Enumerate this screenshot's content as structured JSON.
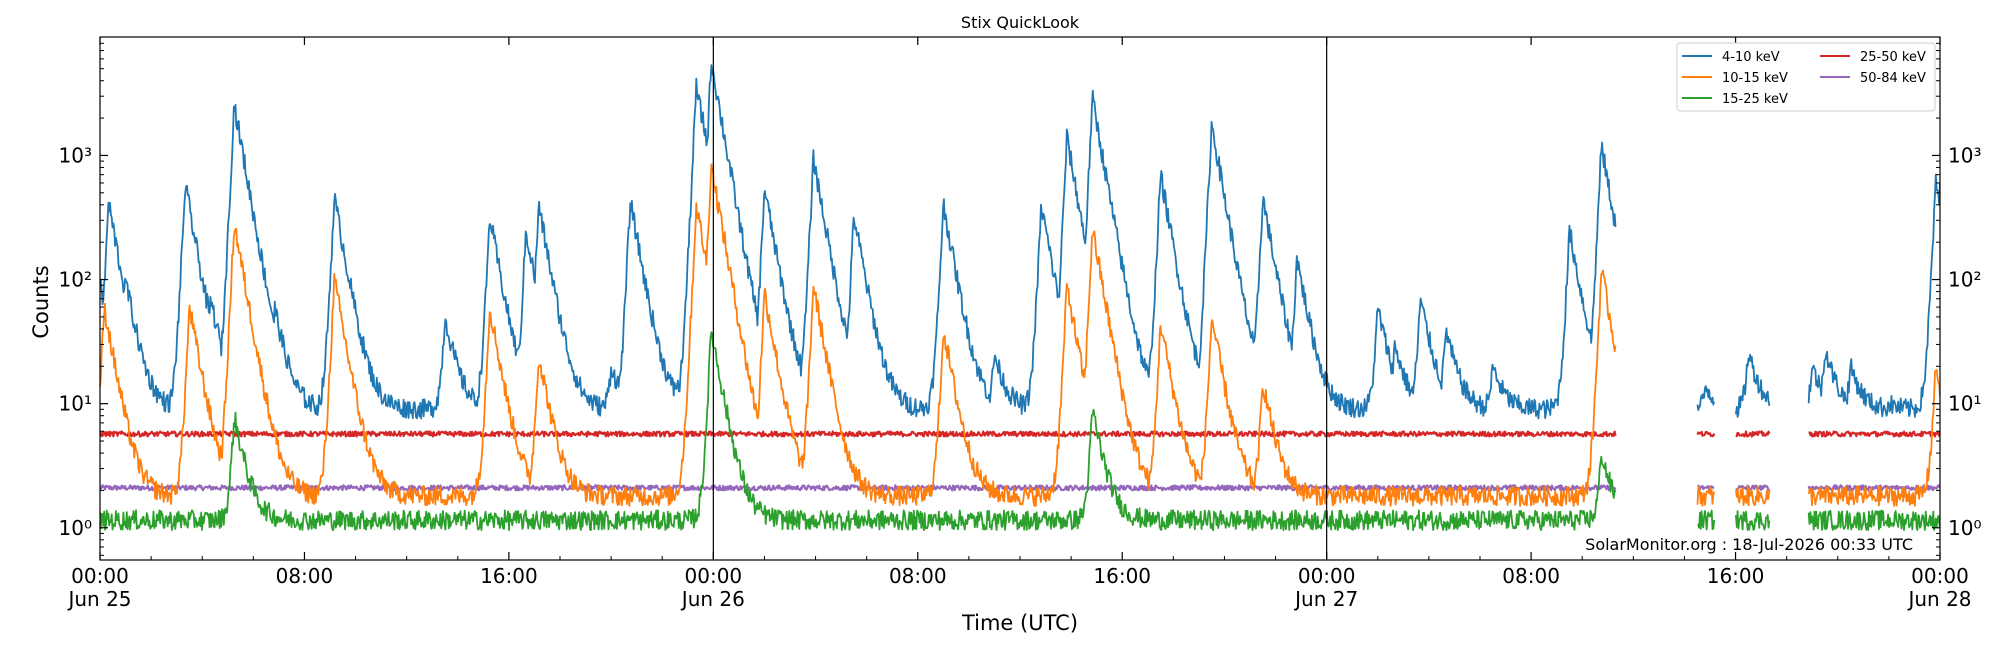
{
  "chart_data": {
    "type": "line",
    "title": "Stix QuickLook",
    "xlabel": "Time (UTC)",
    "ylabel": "Counts",
    "yscale": "log",
    "ylim": [
      0.55,
      9000
    ],
    "xlim": [
      "2026-06-25T00:00",
      "2026-06-28T00:00"
    ],
    "x_ticks": [
      {
        "time": "2026-06-25T00:00",
        "label": "00:00",
        "sublabel": "Jun 25"
      },
      {
        "time": "2026-06-25T08:00",
        "label": "08:00",
        "sublabel": ""
      },
      {
        "time": "2026-06-25T16:00",
        "label": "16:00",
        "sublabel": ""
      },
      {
        "time": "2026-06-26T00:00",
        "label": "00:00",
        "sublabel": "Jun 26"
      },
      {
        "time": "2026-06-26T08:00",
        "label": "08:00",
        "sublabel": ""
      },
      {
        "time": "2026-06-26T16:00",
        "label": "16:00",
        "sublabel": ""
      },
      {
        "time": "2026-06-27T00:00",
        "label": "00:00",
        "sublabel": "Jun 27"
      },
      {
        "time": "2026-06-27T08:00",
        "label": "08:00",
        "sublabel": ""
      },
      {
        "time": "2026-06-27T16:00",
        "label": "16:00",
        "sublabel": ""
      },
      {
        "time": "2026-06-28T00:00",
        "label": "00:00",
        "sublabel": "Jun 28"
      }
    ],
    "y_ticks": [
      {
        "value": 1,
        "label": "10⁰"
      },
      {
        "value": 10,
        "label": "10¹"
      },
      {
        "value": 100,
        "label": "10²"
      },
      {
        "value": 1000,
        "label": "10³"
      }
    ],
    "day_boundaries": [
      "2026-06-26T00:00",
      "2026-06-27T00:00"
    ],
    "data_gaps": [
      {
        "from": "2026-06-27T11:20",
        "to": "2026-06-27T14:30"
      },
      {
        "from": "2026-06-27T15:10",
        "to": "2026-06-27T16:00"
      },
      {
        "from": "2026-06-27T17:20",
        "to": "2026-06-27T18:50"
      }
    ],
    "legend": {
      "position": "top-right",
      "columns": 2
    },
    "grid": false,
    "series": [
      {
        "name": "4-10 keV",
        "color": "#1f77b4",
        "baseline": 9,
        "points": [
          [
            "2026-06-25T00:00",
            90
          ],
          [
            "2026-06-25T00:20",
            420
          ],
          [
            "2026-06-25T01:00",
            100
          ],
          [
            "2026-06-25T02:00",
            15
          ],
          [
            "2026-06-25T03:00",
            12
          ],
          [
            "2026-06-25T03:20",
            580
          ],
          [
            "2026-06-25T04:00",
            40
          ],
          [
            "2026-06-25T04:20",
            70
          ],
          [
            "2026-06-25T05:00",
            12
          ],
          [
            "2026-06-25T05:15",
            2600
          ],
          [
            "2026-06-25T06:00",
            15
          ],
          [
            "2026-06-25T06:50",
            60
          ],
          [
            "2026-06-25T09:10",
            460
          ],
          [
            "2026-06-25T10:00",
            20
          ],
          [
            "2026-06-25T13:30",
            50
          ],
          [
            "2026-06-25T14:00",
            15
          ],
          [
            "2026-06-25T15:15",
            320
          ],
          [
            "2026-06-25T16:00",
            15
          ],
          [
            "2026-06-25T16:40",
            250
          ],
          [
            "2026-06-25T17:10",
            400
          ],
          [
            "2026-06-25T18:00",
            20
          ],
          [
            "2026-06-25T20:00",
            20
          ],
          [
            "2026-06-25T20:45",
            430
          ],
          [
            "2026-06-25T21:30",
            20
          ],
          [
            "2026-06-25T22:30",
            15
          ],
          [
            "2026-06-25T23:20",
            3600
          ],
          [
            "2026-06-25T23:35",
            2000
          ],
          [
            "2026-06-25T23:55",
            5800
          ],
          [
            "2026-06-26T00:10",
            80
          ],
          [
            "2026-06-26T01:00",
            15
          ],
          [
            "2026-06-26T02:00",
            550
          ],
          [
            "2026-06-26T02:30",
            40
          ],
          [
            "2026-06-26T03:30",
            30
          ],
          [
            "2026-06-26T03:55",
            950
          ],
          [
            "2026-06-26T04:30",
            40
          ],
          [
            "2026-06-26T05:00",
            20
          ],
          [
            "2026-06-26T05:30",
            330
          ],
          [
            "2026-06-26T06:30",
            20
          ],
          [
            "2026-06-26T09:00",
            410
          ],
          [
            "2026-06-26T10:00",
            20
          ],
          [
            "2026-06-26T11:00",
            25
          ],
          [
            "2026-06-26T12:50",
            400
          ],
          [
            "2026-06-26T13:50",
            1400
          ],
          [
            "2026-06-26T14:30",
            40
          ],
          [
            "2026-06-26T14:50",
            2900
          ],
          [
            "2026-06-26T15:40",
            60
          ],
          [
            "2026-06-26T16:30",
            20
          ],
          [
            "2026-06-26T17:30",
            700
          ],
          [
            "2026-06-26T18:30",
            30
          ],
          [
            "2026-06-26T19:30",
            1800
          ],
          [
            "2026-06-26T20:30",
            40
          ],
          [
            "2026-06-26T21:30",
            460
          ],
          [
            "2026-06-26T22:50",
            150
          ],
          [
            "2026-06-27T00:00",
            9
          ],
          [
            "2026-06-27T02:00",
            60
          ],
          [
            "2026-06-27T02:40",
            30
          ],
          [
            "2026-06-27T03:40",
            70
          ],
          [
            "2026-06-27T04:40",
            40
          ],
          [
            "2026-06-27T06:30",
            20
          ],
          [
            "2026-06-27T09:30",
            250
          ],
          [
            "2026-06-27T10:00",
            12
          ],
          [
            "2026-06-27T10:45",
            1200
          ],
          [
            "2026-06-27T11:20",
            20
          ],
          [
            "2026-06-27T14:50",
            14
          ],
          [
            "2026-06-27T16:30",
            26
          ],
          [
            "2026-06-27T19:00",
            20
          ],
          [
            "2026-06-27T19:30",
            28
          ],
          [
            "2026-06-27T20:30",
            20
          ],
          [
            "2026-06-27T22:00",
            10
          ],
          [
            "2026-06-27T23:50",
            600
          ],
          [
            "2026-06-28T00:00",
            600
          ]
        ]
      },
      {
        "name": "10-15 keV",
        "color": "#ff7f0e",
        "baseline": 1.8,
        "points": [
          [
            "2026-06-25T00:10",
            60
          ],
          [
            "2026-06-25T03:30",
            60
          ],
          [
            "2026-06-25T05:15",
            290
          ],
          [
            "2026-06-25T09:10",
            100
          ],
          [
            "2026-06-25T15:15",
            60
          ],
          [
            "2026-06-25T17:10",
            25
          ],
          [
            "2026-06-25T23:20",
            400
          ],
          [
            "2026-06-25T23:55",
            850
          ],
          [
            "2026-06-26T02:00",
            80
          ],
          [
            "2026-06-26T03:55",
            90
          ],
          [
            "2026-06-26T09:00",
            40
          ],
          [
            "2026-06-26T13:50",
            90
          ],
          [
            "2026-06-26T14:50",
            260
          ],
          [
            "2026-06-26T17:30",
            45
          ],
          [
            "2026-06-26T19:30",
            50
          ],
          [
            "2026-06-26T21:30",
            15
          ],
          [
            "2026-06-27T10:45",
            120
          ],
          [
            "2026-06-27T23:50",
            20
          ]
        ]
      },
      {
        "name": "15-25 keV",
        "color": "#2ca02c",
        "baseline": 1.15,
        "points": [
          [
            "2026-06-25T05:15",
            8
          ],
          [
            "2026-06-25T23:55",
            40
          ],
          [
            "2026-06-26T14:50",
            9
          ],
          [
            "2026-06-27T10:45",
            4
          ]
        ]
      },
      {
        "name": "25-50 keV",
        "color": "#d62728",
        "baseline": 5.7,
        "points": []
      },
      {
        "name": "50-84 keV",
        "color": "#9467bd",
        "baseline": 2.1,
        "points": []
      }
    ]
  },
  "credit": "SolarMonitor.org : 18-Jul-2026 00:33 UTC"
}
